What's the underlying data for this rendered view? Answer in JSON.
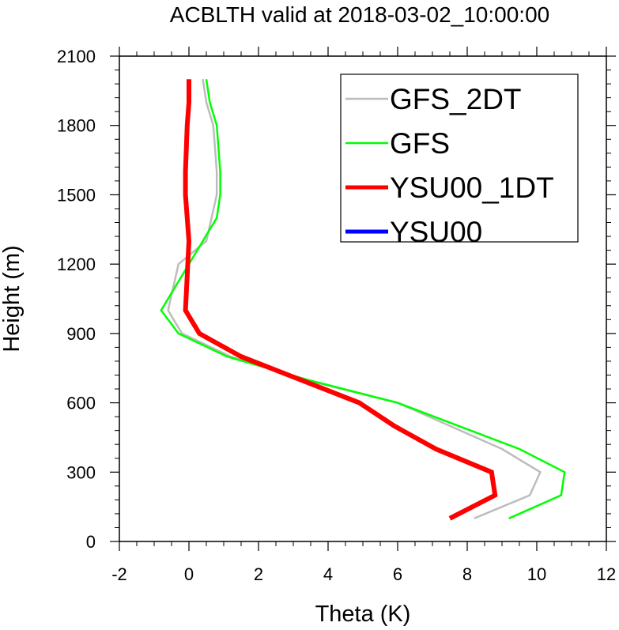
{
  "chart_data": {
    "type": "line",
    "title": "ACBLTH valid at 2018-03-02_10:00:00",
    "xlabel": "Theta (K)",
    "ylabel": "Height (m)",
    "xlim": [
      -2,
      12
    ],
    "ylim": [
      0,
      2100
    ],
    "xticks": [
      "-2",
      "0",
      "2",
      "4",
      "6",
      "8",
      "10",
      "12"
    ],
    "yticks": [
      "0",
      "300",
      "600",
      "900",
      "1200",
      "1500",
      "1800",
      "2100"
    ],
    "legend_position": "top-right",
    "series": [
      {
        "name": "GFS_2DT",
        "color": "#bdbdbd",
        "width": "thin",
        "x": [
          8.2,
          9.8,
          10.1,
          9.0,
          6.0,
          3.3,
          1.2,
          -0.2,
          -0.6,
          -0.3,
          0.5,
          0.8,
          0.8,
          0.7,
          0.5,
          0.4
        ],
        "y": [
          100,
          200,
          300,
          400,
          600,
          700,
          800,
          900,
          1000,
          1200,
          1300,
          1500,
          1600,
          1800,
          1900,
          2000
        ]
      },
      {
        "name": "GFS",
        "color": "#00ff00",
        "width": "thin",
        "x": [
          9.2,
          10.7,
          10.8,
          9.5,
          6.0,
          3.4,
          1.1,
          -0.3,
          -0.8,
          0.0,
          0.8,
          0.9,
          0.9,
          0.8,
          0.6,
          0.5
        ],
        "y": [
          100,
          200,
          300,
          400,
          600,
          700,
          800,
          900,
          1000,
          1200,
          1400,
          1500,
          1600,
          1800,
          1900,
          2000
        ]
      },
      {
        "name": "YSU00_1DT",
        "color": "#ff0000",
        "width": "thick",
        "x": [
          7.5,
          8.8,
          8.7,
          7.1,
          5.9,
          4.9,
          1.5,
          0.3,
          -0.1,
          0.0,
          -0.1,
          -0.1,
          -0.05,
          0.0,
          0.0
        ],
        "y": [
          100,
          200,
          300,
          400,
          500,
          600,
          800,
          900,
          1000,
          1300,
          1500,
          1600,
          1800,
          1900,
          2000
        ]
      },
      {
        "name": "YSU00",
        "color": "#0000ff",
        "width": "thick",
        "x": [],
        "y": []
      }
    ]
  }
}
